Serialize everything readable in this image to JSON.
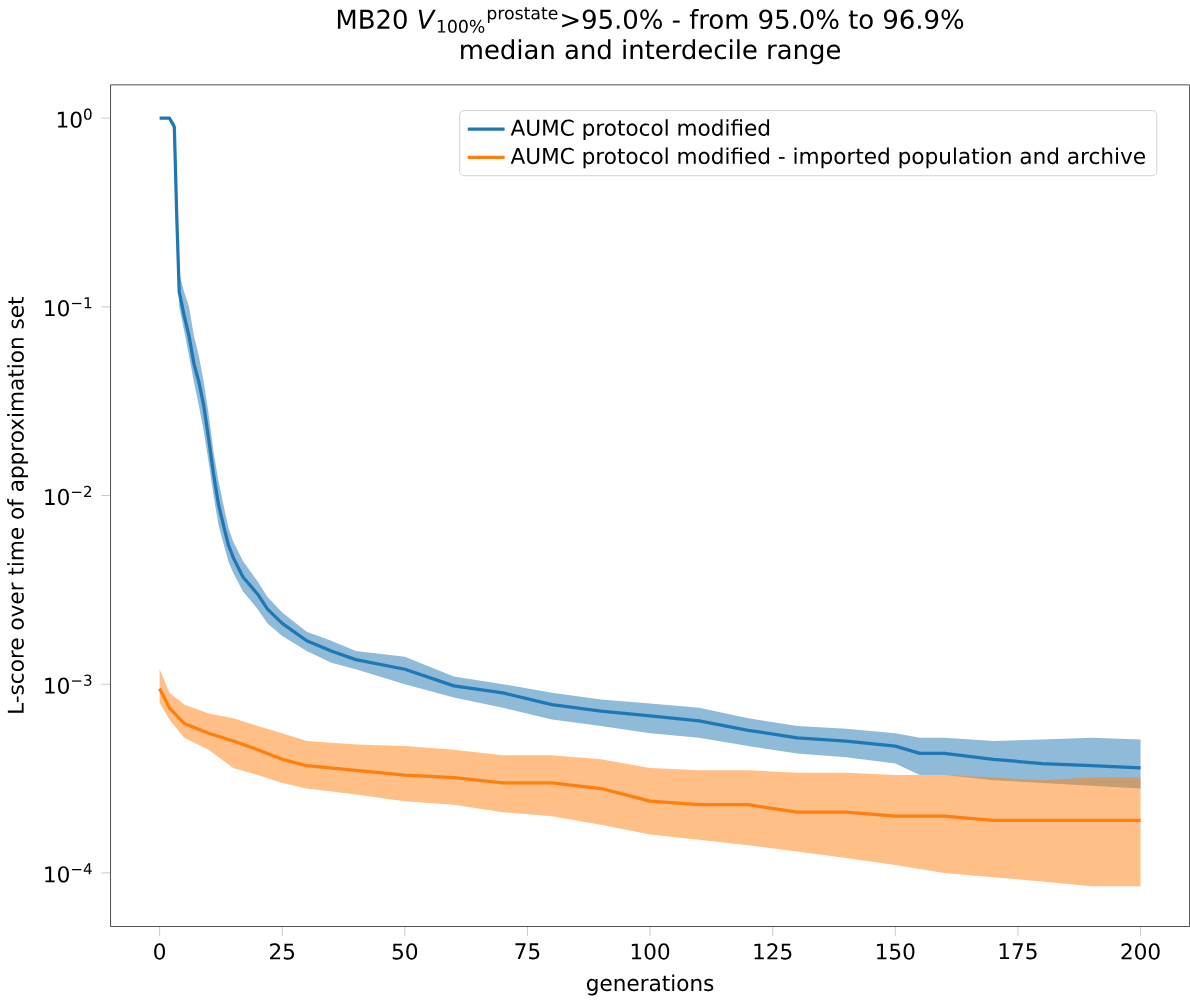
{
  "chart_data": {
    "type": "line",
    "title": "MB20 *V*$_{100%}$$^{prostate}$>95.0% - from 95.0% to 96.9%",
    "subtitle": "median and interdecile range",
    "xlabel": "generations",
    "ylabel": "L-score over time of approximation set",
    "log": "y",
    "xlim": [
      -10,
      210
    ],
    "ylim": [
      5.2e-05,
      1.5
    ],
    "xticks": [
      0,
      25,
      50,
      75,
      100,
      125,
      150,
      175,
      200
    ],
    "yticks": [
      {
        "value": 1,
        "label": "10$^{0}$"
      },
      {
        "value": 0.1,
        "label": "10$^{−1}$"
      },
      {
        "value": 0.01,
        "label": "10$^{−2}$"
      },
      {
        "value": 0.001,
        "label": "10$^{−3}$"
      },
      {
        "value": 0.0001,
        "label": "10$^{−4}$"
      }
    ],
    "legend": "top right",
    "series": [
      {
        "name": "AUMC protocol modified",
        "color": "#1f77b4",
        "x": [
          0,
          2,
          3,
          3.5,
          4,
          5,
          6,
          7,
          8,
          9,
          10,
          11,
          12,
          13,
          14,
          15,
          17,
          20,
          22,
          25,
          30,
          35,
          40,
          50,
          60,
          70,
          80,
          90,
          100,
          110,
          120,
          130,
          140,
          150,
          155,
          160,
          170,
          180,
          190,
          200
        ],
        "values": [
          1.0,
          1.0,
          0.9,
          0.3,
          0.12,
          0.09,
          0.07,
          0.05,
          0.04,
          0.03,
          0.02,
          0.013,
          0.009,
          0.007,
          0.0055,
          0.0047,
          0.0037,
          0.003,
          0.0025,
          0.0021,
          0.0017,
          0.0015,
          0.00135,
          0.0012,
          0.00098,
          0.0009,
          0.00078,
          0.00072,
          0.00068,
          0.00064,
          0.00057,
          0.00052,
          0.0005,
          0.00047,
          0.00043,
          0.00043,
          0.0004,
          0.00038,
          0.00037,
          0.00036
        ],
        "upper": [
          1.0,
          1.0,
          0.95,
          0.4,
          0.15,
          0.12,
          0.1,
          0.07,
          0.055,
          0.04,
          0.027,
          0.017,
          0.012,
          0.009,
          0.0068,
          0.0057,
          0.0045,
          0.0035,
          0.0029,
          0.0024,
          0.0019,
          0.0017,
          0.0015,
          0.0014,
          0.0011,
          0.001,
          0.0009,
          0.00083,
          0.00079,
          0.00075,
          0.00066,
          0.0006,
          0.00058,
          0.00055,
          0.00052,
          0.00052,
          0.0005,
          0.00051,
          0.00052,
          0.00051
        ],
        "lower": [
          1.0,
          1.0,
          0.85,
          0.25,
          0.1,
          0.075,
          0.055,
          0.04,
          0.03,
          0.022,
          0.015,
          0.01,
          0.007,
          0.0056,
          0.0045,
          0.0039,
          0.0031,
          0.0025,
          0.0021,
          0.0018,
          0.0015,
          0.0013,
          0.0012,
          0.001,
          0.00085,
          0.00075,
          0.00065,
          0.0006,
          0.00055,
          0.00052,
          0.00047,
          0.00043,
          0.00041,
          0.00038,
          0.00033,
          0.00033,
          0.00031,
          0.0003,
          0.00029,
          0.00028
        ]
      },
      {
        "name": "AUMC protocol modified - imported population and archive",
        "color": "#ff7f0e",
        "x": [
          0,
          2,
          5,
          10,
          15,
          20,
          25,
          30,
          40,
          50,
          60,
          70,
          80,
          90,
          100,
          110,
          120,
          130,
          140,
          150,
          160,
          170,
          180,
          190,
          200
        ],
        "values": [
          0.00095,
          0.00075,
          0.00062,
          0.00055,
          0.0005,
          0.00045,
          0.0004,
          0.00037,
          0.00035,
          0.00033,
          0.00032,
          0.0003,
          0.0003,
          0.00028,
          0.00024,
          0.00023,
          0.00023,
          0.00021,
          0.00021,
          0.0002,
          0.0002,
          0.00019,
          0.00019,
          0.00019,
          0.00019
        ],
        "upper": [
          0.0012,
          0.0009,
          0.00078,
          0.0007,
          0.00066,
          0.0006,
          0.00055,
          0.0005,
          0.00048,
          0.00047,
          0.00045,
          0.00042,
          0.00042,
          0.0004,
          0.00036,
          0.00035,
          0.00035,
          0.00034,
          0.00034,
          0.00033,
          0.00033,
          0.00032,
          0.00031,
          0.00032,
          0.00032
        ],
        "lower": [
          0.0008,
          0.00065,
          0.00052,
          0.00045,
          0.00036,
          0.00033,
          0.0003,
          0.00028,
          0.00026,
          0.00024,
          0.00023,
          0.00021,
          0.0002,
          0.00018,
          0.00016,
          0.00015,
          0.00014,
          0.00013,
          0.00012,
          0.00011,
          0.0001,
          9.5e-05,
          9e-05,
          8.5e-05,
          8.5e-05
        ]
      }
    ]
  }
}
